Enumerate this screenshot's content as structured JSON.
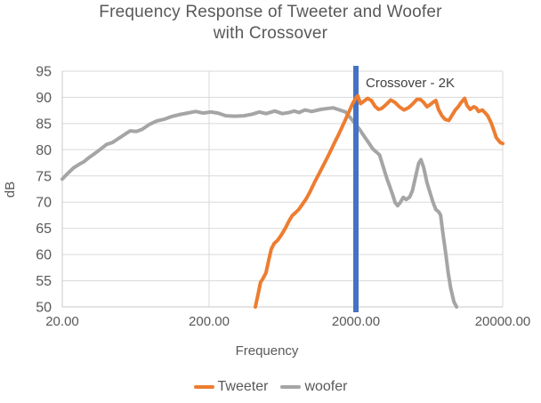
{
  "title": {
    "line1": "Frequency Response of Tweeter and Woofer",
    "line2": "with Crossover"
  },
  "chart_data": {
    "type": "line",
    "title": "Frequency Response of Tweeter and Woofer with Crossover",
    "xlabel": "Frequency",
    "ylabel": "dB",
    "x_scale": "log",
    "xlim": [
      20,
      20000
    ],
    "ylim": [
      50,
      95
    ],
    "grid": true,
    "legend_position": "bottom",
    "y_ticks": [
      95,
      90,
      85,
      80,
      75,
      70,
      65,
      60,
      55,
      50
    ],
    "x_ticks": [
      {
        "value": 20,
        "label": "20.00"
      },
      {
        "value": 200,
        "label": "200.00"
      },
      {
        "value": 2000,
        "label": "2000.00"
      },
      {
        "value": 20000,
        "label": "20000.00"
      }
    ],
    "annotation": {
      "label": "Crossover - 2K",
      "x": 2000,
      "color": "#4472C4"
    },
    "series": [
      {
        "name": "Tweeter",
        "color": "#ED7D31",
        "points": [
          [
            413,
            50.0
          ],
          [
            430,
            52.3
          ],
          [
            448,
            54.7
          ],
          [
            465,
            55.4
          ],
          [
            488,
            56.5
          ],
          [
            510,
            59.0
          ],
          [
            530,
            61.0
          ],
          [
            555,
            62.1
          ],
          [
            585,
            62.7
          ],
          [
            620,
            63.7
          ],
          [
            660,
            65.0
          ],
          [
            700,
            66.4
          ],
          [
            735,
            67.4
          ],
          [
            775,
            68.0
          ],
          [
            815,
            68.6
          ],
          [
            860,
            69.5
          ],
          [
            915,
            70.6
          ],
          [
            975,
            72.0
          ],
          [
            1050,
            73.9
          ],
          [
            1130,
            75.6
          ],
          [
            1220,
            77.4
          ],
          [
            1320,
            79.3
          ],
          [
            1420,
            81.2
          ],
          [
            1530,
            83.0
          ],
          [
            1650,
            85.0
          ],
          [
            1780,
            87.0
          ],
          [
            1900,
            88.8
          ],
          [
            2000,
            89.9
          ],
          [
            2060,
            90.3
          ],
          [
            2150,
            88.8
          ],
          [
            2250,
            89.2
          ],
          [
            2400,
            89.8
          ],
          [
            2550,
            89.4
          ],
          [
            2700,
            88.3
          ],
          [
            2850,
            87.7
          ],
          [
            3000,
            87.9
          ],
          [
            3200,
            88.6
          ],
          [
            3450,
            89.5
          ],
          [
            3700,
            89.0
          ],
          [
            3950,
            88.2
          ],
          [
            4250,
            87.6
          ],
          [
            4550,
            88.0
          ],
          [
            4850,
            88.7
          ],
          [
            5200,
            89.6
          ],
          [
            5500,
            89.6
          ],
          [
            5800,
            89.0
          ],
          [
            6100,
            88.2
          ],
          [
            6400,
            88.6
          ],
          [
            6800,
            89.2
          ],
          [
            7000,
            89.4
          ],
          [
            7300,
            87.7
          ],
          [
            7700,
            86.5
          ],
          [
            8100,
            85.8
          ],
          [
            8600,
            85.6
          ],
          [
            8950,
            86.4
          ],
          [
            9500,
            87.6
          ],
          [
            9950,
            88.2
          ],
          [
            10400,
            89.0
          ],
          [
            11000,
            89.8
          ],
          [
            11400,
            88.5
          ],
          [
            12000,
            87.7
          ],
          [
            12700,
            88.2
          ],
          [
            13150,
            88.0
          ],
          [
            13700,
            87.3
          ],
          [
            14500,
            87.6
          ],
          [
            15100,
            87.1
          ],
          [
            15800,
            86.5
          ],
          [
            16700,
            85.1
          ],
          [
            17400,
            83.7
          ],
          [
            18100,
            82.3
          ],
          [
            19200,
            81.4
          ],
          [
            20000,
            81.2
          ]
        ]
      },
      {
        "name": "woofer",
        "color": "#A5A5A5",
        "points": [
          [
            20,
            74.4
          ],
          [
            22,
            75.6
          ],
          [
            24,
            76.6
          ],
          [
            26,
            77.2
          ],
          [
            28,
            77.7
          ],
          [
            30,
            78.4
          ],
          [
            33,
            79.2
          ],
          [
            36,
            80.0
          ],
          [
            40,
            81.0
          ],
          [
            44,
            81.4
          ],
          [
            48,
            82.1
          ],
          [
            53,
            82.9
          ],
          [
            58,
            83.6
          ],
          [
            64,
            83.5
          ],
          [
            70,
            83.9
          ],
          [
            78,
            84.8
          ],
          [
            88,
            85.5
          ],
          [
            98,
            85.8
          ],
          [
            110,
            86.3
          ],
          [
            125,
            86.7
          ],
          [
            142,
            87.0
          ],
          [
            162,
            87.3
          ],
          [
            182,
            87.0
          ],
          [
            205,
            87.2
          ],
          [
            230,
            87.0
          ],
          [
            260,
            86.5
          ],
          [
            300,
            86.4
          ],
          [
            345,
            86.5
          ],
          [
            395,
            86.8
          ],
          [
            440,
            87.2
          ],
          [
            490,
            86.9
          ],
          [
            560,
            87.4
          ],
          [
            630,
            86.9
          ],
          [
            700,
            87.1
          ],
          [
            760,
            87.4
          ],
          [
            820,
            87.1
          ],
          [
            900,
            87.6
          ],
          [
            1000,
            87.3
          ],
          [
            1150,
            87.7
          ],
          [
            1300,
            87.9
          ],
          [
            1400,
            88.0
          ],
          [
            1550,
            87.6
          ],
          [
            1700,
            87.2
          ],
          [
            1860,
            85.9
          ],
          [
            2000,
            84.8
          ],
          [
            2150,
            83.6
          ],
          [
            2300,
            82.4
          ],
          [
            2450,
            81.3
          ],
          [
            2600,
            80.2
          ],
          [
            2750,
            79.6
          ],
          [
            2900,
            79.0
          ],
          [
            3050,
            77.0
          ],
          [
            3250,
            74.5
          ],
          [
            3400,
            73.0
          ],
          [
            3550,
            71.5
          ],
          [
            3700,
            69.9
          ],
          [
            3850,
            69.3
          ],
          [
            4000,
            69.9
          ],
          [
            4200,
            70.9
          ],
          [
            4400,
            70.5
          ],
          [
            4650,
            71.0
          ],
          [
            4850,
            72.2
          ],
          [
            5100,
            74.9
          ],
          [
            5350,
            77.4
          ],
          [
            5550,
            78.1
          ],
          [
            5800,
            76.5
          ],
          [
            6100,
            73.7
          ],
          [
            6400,
            71.8
          ],
          [
            6700,
            70.0
          ],
          [
            7000,
            68.6
          ],
          [
            7350,
            68.1
          ],
          [
            7550,
            67.5
          ],
          [
            7800,
            64.4
          ],
          [
            8200,
            60.0
          ],
          [
            8500,
            56.5
          ],
          [
            8850,
            53.5
          ],
          [
            9300,
            51.0
          ],
          [
            9700,
            50.0
          ]
        ]
      }
    ],
    "colors": {
      "gridline": "#D9D9D9",
      "axis_text": "#595959",
      "title_text": "#595959",
      "annotation_text": "#404040"
    }
  }
}
